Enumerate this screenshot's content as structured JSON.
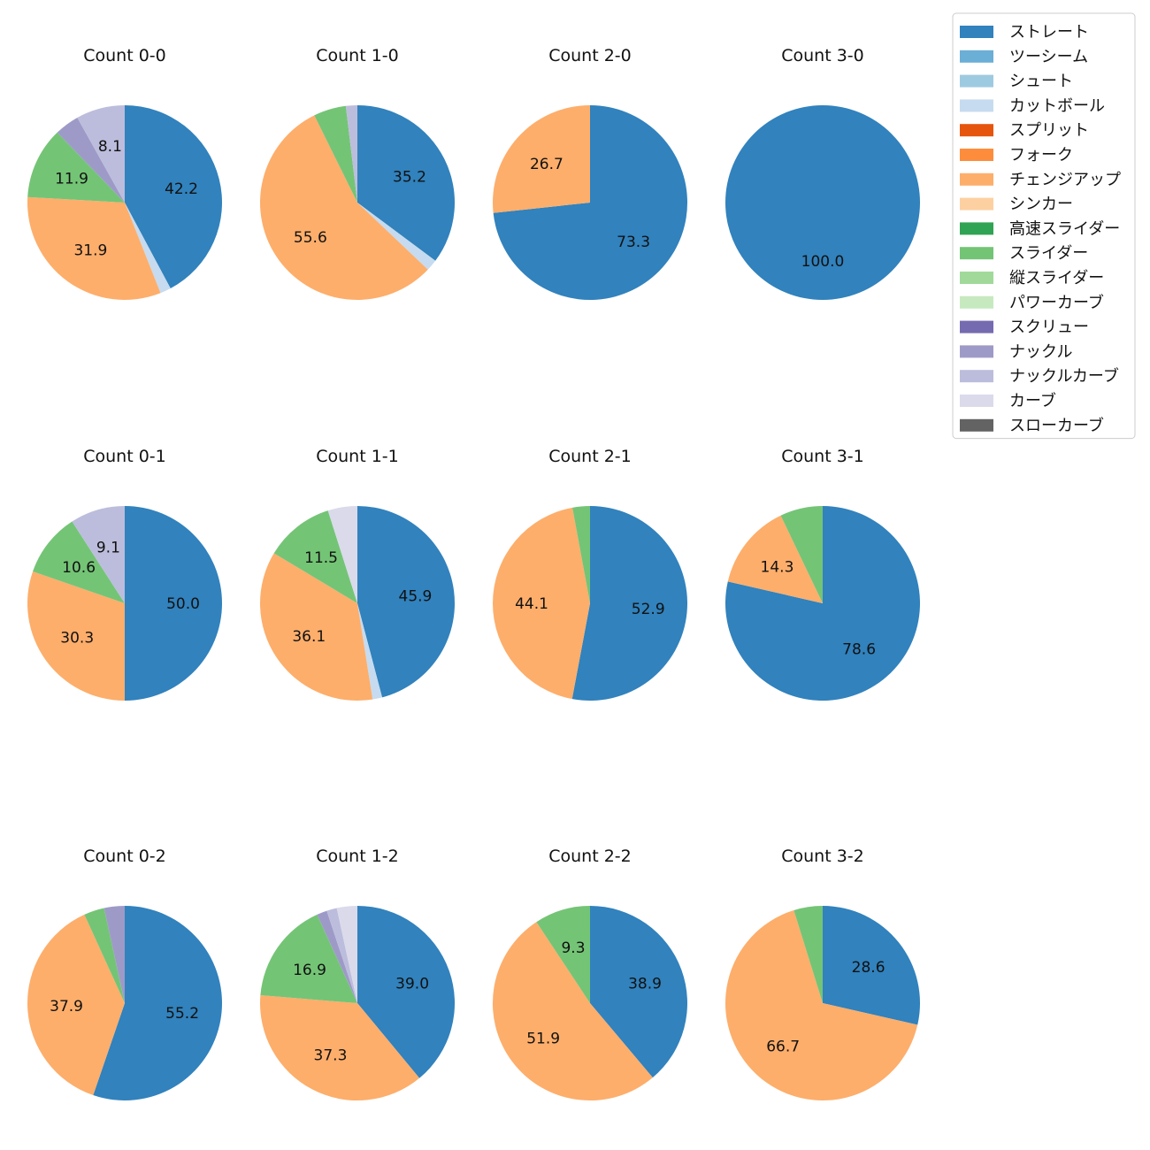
{
  "chart_data": {
    "type": "pie",
    "legend_position": "top-right",
    "categories": [
      "ストレート",
      "ツーシーム",
      "シュート",
      "カットボール",
      "スプリット",
      "フォーク",
      "チェンジアップ",
      "シンカー",
      "高速スライダー",
      "スライダー",
      "縦スライダー",
      "パワーカーブ",
      "スクリュー",
      "ナックル",
      "ナックルカーブ",
      "カーブ",
      "スローカーブ"
    ],
    "colors": [
      "#3182bd",
      "#6baed6",
      "#9ecae1",
      "#c6dbef",
      "#e6550d",
      "#fd8d3c",
      "#fdae6b",
      "#fdd0a2",
      "#31a354",
      "#74c476",
      "#a1d99b",
      "#c7e9c0",
      "#756bb1",
      "#9e9ac8",
      "#bcbddc",
      "#dadaeb",
      "#636363"
    ],
    "pies": [
      {
        "title": "Count 0-0",
        "values": {
          "ストレート": 42.2,
          "カットボール": 1.8,
          "チェンジアップ": 31.9,
          "スライダー": 11.9,
          "ナックル": 4.1,
          "ナックルカーブ": 8.1
        },
        "labels": {
          "ストレート": "42.2",
          "チェンジアップ": "31.9",
          "スライダー": "11.9",
          "ナックルカーブ": "8.1"
        }
      },
      {
        "title": "Count 1-0",
        "values": {
          "ストレート": 35.2,
          "カットボール": 1.9,
          "チェンジアップ": 55.6,
          "スライダー": 5.4,
          "ナックルカーブ": 1.9
        },
        "labels": {
          "ストレート": "35.2",
          "チェンジアップ": "55.6"
        }
      },
      {
        "title": "Count 2-0",
        "values": {
          "ストレート": 73.3,
          "チェンジアップ": 26.7
        },
        "labels": {
          "ストレート": "73.3",
          "チェンジアップ": "26.7"
        }
      },
      {
        "title": "Count 3-0",
        "values": {
          "ストレート": 100.0
        },
        "labels": {
          "ストレート": "100.0"
        }
      },
      {
        "title": "Count 0-1",
        "values": {
          "ストレート": 50.0,
          "チェンジアップ": 30.3,
          "スライダー": 10.6,
          "ナックルカーブ": 9.1
        },
        "labels": {
          "ストレート": "50.0",
          "チェンジアップ": "30.3",
          "スライダー": "10.6",
          "ナックルカーブ": "9.1"
        }
      },
      {
        "title": "Count 1-1",
        "values": {
          "ストレート": 45.9,
          "カットボール": 1.6,
          "チェンジアップ": 36.1,
          "スライダー": 11.5,
          "カーブ": 4.9
        },
        "labels": {
          "ストレート": "45.9",
          "チェンジアップ": "36.1",
          "スライダー": "11.5"
        }
      },
      {
        "title": "Count 2-1",
        "values": {
          "ストレート": 52.9,
          "チェンジアップ": 44.1,
          "スライダー": 2.9
        },
        "labels": {
          "ストレート": "52.9",
          "チェンジアップ": "44.1"
        }
      },
      {
        "title": "Count 3-1",
        "values": {
          "ストレート": 78.6,
          "チェンジアップ": 14.3,
          "スライダー": 7.1
        },
        "labels": {
          "ストレート": "78.6",
          "チェンジアップ": "14.3"
        }
      },
      {
        "title": "Count 0-2",
        "values": {
          "ストレート": 55.2,
          "チェンジアップ": 37.9,
          "スライダー": 3.4,
          "ナックル": 3.4
        },
        "labels": {
          "ストレート": "55.2",
          "チェンジアップ": "37.9"
        }
      },
      {
        "title": "Count 1-2",
        "values": {
          "ストレート": 39.0,
          "チェンジアップ": 37.3,
          "スライダー": 16.9,
          "ナックル": 1.7,
          "ナックルカーブ": 1.7,
          "カーブ": 3.4
        },
        "labels": {
          "ストレート": "39.0",
          "チェンジアップ": "37.3",
          "スライダー": "16.9"
        }
      },
      {
        "title": "Count 2-2",
        "values": {
          "ストレート": 38.9,
          "チェンジアップ": 51.9,
          "スライダー": 9.3
        },
        "labels": {
          "ストレート": "38.9",
          "チェンジアップ": "51.9",
          "スライダー": "9.3"
        }
      },
      {
        "title": "Count 3-2",
        "values": {
          "ストレート": 28.6,
          "チェンジアップ": 66.7,
          "スライダー": 4.8
        },
        "labels": {
          "ストレート": "28.6",
          "チェンジアップ": "66.7"
        }
      }
    ]
  }
}
